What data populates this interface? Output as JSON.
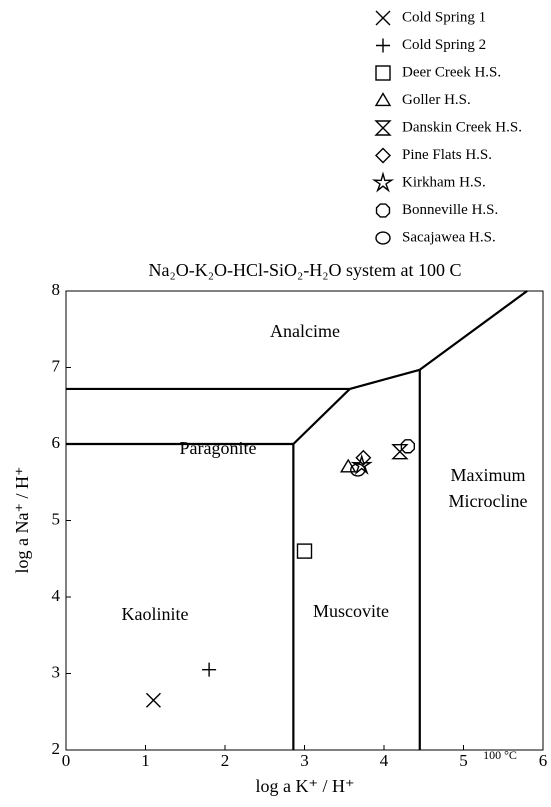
{
  "chart_data": {
    "type": "scatter",
    "title": "Na₂O-K₂O-HCl-SiO₂-H₂O system at 100 C",
    "x_label": "log a K⁺ / H⁺",
    "y_label": "log a Na⁺ / H⁺",
    "xlim": [
      0,
      6
    ],
    "ylim": [
      2,
      8
    ],
    "xticks": [
      0,
      1,
      2,
      3,
      4,
      5,
      6
    ],
    "yticks": [
      2,
      3,
      4,
      5,
      6,
      7,
      8
    ],
    "color": "#000000",
    "legend": "top-right",
    "series": [
      {
        "name": "Cold Spring 1",
        "marker": "x",
        "x": [
          1.1
        ],
        "y": [
          2.65
        ]
      },
      {
        "name": "Cold Spring 2",
        "marker": "plus",
        "x": [
          1.8
        ],
        "y": [
          3.05
        ]
      },
      {
        "name": "Deer Creek H.S.",
        "marker": "square",
        "x": [
          3.0
        ],
        "y": [
          4.6
        ]
      },
      {
        "name": "Goller H.S.",
        "marker": "triangle",
        "x": [
          3.55
        ],
        "y": [
          5.7
        ]
      },
      {
        "name": "Danskin Creek H.S.",
        "marker": "hourglass",
        "x": [
          4.2
        ],
        "y": [
          5.9
        ]
      },
      {
        "name": "Pine Flats H.S.",
        "marker": "diamond",
        "x": [
          3.74
        ],
        "y": [
          5.82
        ]
      },
      {
        "name": "Kirkham H.S.",
        "marker": "star",
        "x": [
          3.72
        ],
        "y": [
          5.72
        ]
      },
      {
        "name": "Bonneville H.S.",
        "marker": "octagon",
        "x": [
          4.3
        ],
        "y": [
          5.97
        ]
      },
      {
        "name": "Sacajawea H.S.",
        "marker": "circle",
        "x": [
          3.67
        ],
        "y": [
          5.66
        ]
      }
    ],
    "boundaries": [
      {
        "x": [
          0,
          3.57
        ],
        "y": [
          6.72,
          6.72
        ]
      },
      {
        "x": [
          0,
          2.86
        ],
        "y": [
          6.0,
          6.0
        ]
      },
      {
        "x": [
          2.86,
          2.86
        ],
        "y": [
          2,
          6.0
        ]
      },
      {
        "x": [
          2.86,
          3.57
        ],
        "y": [
          6.0,
          6.72
        ]
      },
      {
        "x": [
          3.57,
          4.45
        ],
        "y": [
          6.72,
          6.97
        ]
      },
      {
        "x": [
          4.45,
          4.45
        ],
        "y": [
          2,
          6.97
        ]
      },
      {
        "x": [
          4.45,
          5.8
        ],
        "y": [
          6.97,
          8
        ]
      }
    ],
    "regions": [
      "Analcime",
      "Paragonite",
      "Kaolinite",
      "Muscovite",
      "Maximum",
      "Microcline"
    ],
    "annotation": "100 °C"
  }
}
